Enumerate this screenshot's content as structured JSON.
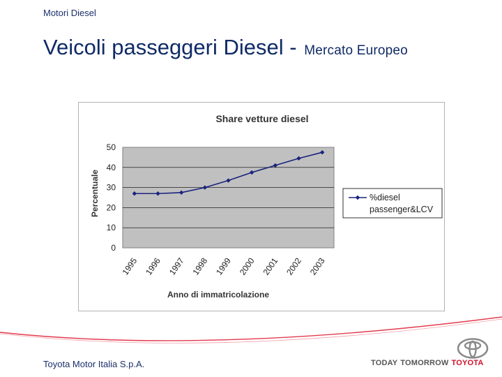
{
  "header": {
    "section": "Motori Diesel",
    "title_main": "Veicoli passeggeri Diesel - ",
    "title_sub": "Mercato Europeo"
  },
  "chart_data": {
    "type": "line",
    "title": "Share vetture diesel",
    "xlabel": "Anno di immatricolazione",
    "ylabel": "Percentuale",
    "categories": [
      "1995",
      "1996",
      "1997",
      "1998",
      "1999",
      "2000",
      "2001",
      "2002",
      "2003"
    ],
    "series": [
      {
        "name": "%diesel passenger&LCV",
        "legend_lines": [
          "%diesel",
          "passenger&LCV"
        ],
        "values": [
          27,
          27,
          27.5,
          30,
          33.5,
          37.5,
          41,
          44.5,
          47.5
        ],
        "color": "#1a237e"
      }
    ],
    "ylim": [
      0,
      50
    ],
    "yticks": [
      0,
      10,
      20,
      30,
      40,
      50
    ],
    "grid": true,
    "plot_background": "#c0c0c0",
    "legend_position": "right"
  },
  "footer": {
    "company": "Toyota Motor Italia S.p.A.",
    "tagline": [
      "TODAY",
      "TOMORROW",
      "TOYOTA"
    ],
    "brand_color": "#d0122a"
  }
}
